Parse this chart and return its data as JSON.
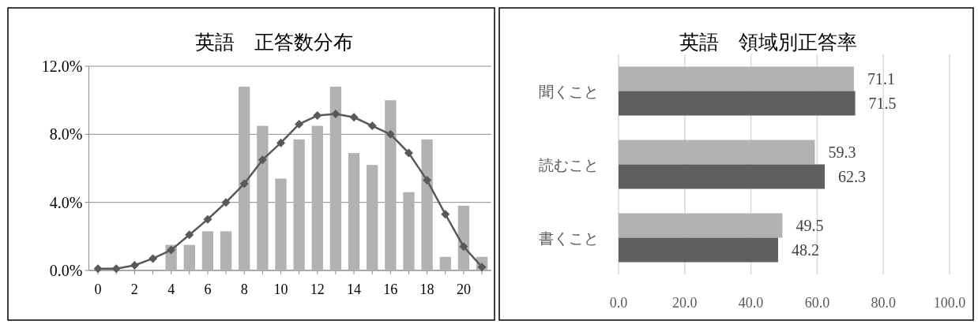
{
  "chart_data": [
    {
      "type": "bar",
      "title": "英語　正答数分布",
      "x": [
        0,
        1,
        2,
        3,
        4,
        5,
        6,
        7,
        8,
        9,
        10,
        11,
        12,
        13,
        14,
        15,
        16,
        17,
        18,
        19,
        20,
        21
      ],
      "series": [
        {
          "type": "bar",
          "color": "#b2b2b2",
          "values": [
            0,
            0,
            0,
            0,
            1.5,
            1.5,
            2.3,
            2.3,
            10.8,
            8.5,
            5.4,
            7.7,
            8.5,
            10.8,
            6.9,
            6.2,
            10.0,
            4.6,
            7.7,
            0.8,
            3.8,
            0.8
          ]
        },
        {
          "type": "line",
          "color": "#595959",
          "marker": "diamond",
          "values": [
            0.1,
            0.1,
            0.3,
            0.7,
            1.2,
            2.1,
            3.0,
            4.0,
            5.1,
            6.5,
            7.5,
            8.6,
            9.1,
            9.2,
            9.0,
            8.5,
            8.0,
            6.9,
            5.3,
            3.3,
            1.4,
            0.2
          ]
        }
      ],
      "xlim": [
        -0.5,
        21.5
      ],
      "xticks": [
        0,
        2,
        4,
        6,
        8,
        10,
        12,
        14,
        16,
        18,
        20
      ],
      "ylim": [
        0,
        12
      ],
      "yticks": [
        {
          "value": 0,
          "label": "0.0%"
        },
        {
          "value": 4,
          "label": "4.0%"
        },
        {
          "value": 8,
          "label": "8.0%"
        },
        {
          "value": 12,
          "label": "12.0%"
        }
      ],
      "grid": "y"
    },
    {
      "type": "bar",
      "orientation": "horizontal",
      "title": "英語　領域別正答率",
      "categories": [
        "聞くこと",
        "読むこと",
        "書くこと"
      ],
      "series": [
        {
          "color": "#b2b2b2",
          "values": [
            71.1,
            59.3,
            49.5
          ]
        },
        {
          "color": "#5f5f5f",
          "values": [
            71.5,
            62.3,
            48.2
          ]
        }
      ],
      "xlim": [
        0,
        100
      ],
      "xticks": [
        {
          "value": 0,
          "label": "0.0"
        },
        {
          "value": 20,
          "label": "20.0"
        },
        {
          "value": 40,
          "label": "40.0"
        },
        {
          "value": 60,
          "label": "60.0"
        },
        {
          "value": 80,
          "label": "80.0"
        },
        {
          "value": 100,
          "label": "100.0"
        }
      ],
      "grid": "x",
      "data_labels": true
    }
  ]
}
